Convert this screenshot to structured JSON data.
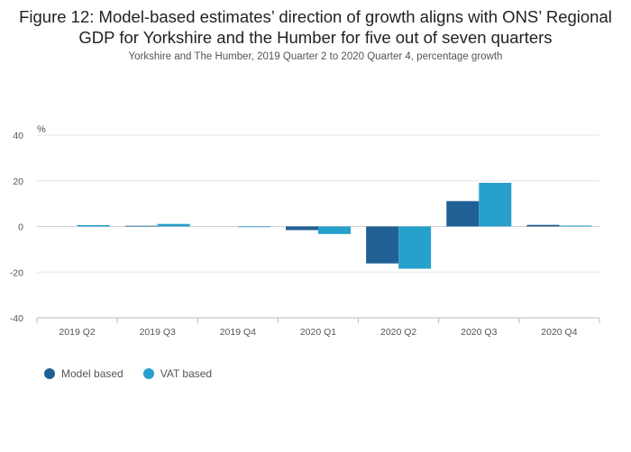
{
  "chart_data": {
    "type": "bar",
    "title": "Figure 12: Model-based estimates’ direction of growth aligns with ONS’ Regional GDP for Yorkshire and the Humber for five out of seven quarters",
    "subtitle": "Yorkshire and The Humber, 2019 Quarter 2 to 2020 Quarter 4, percentage growth",
    "ylabel": "%",
    "ylim": [
      -40,
      40
    ],
    "yticks": [
      40,
      20,
      0,
      -20,
      -40
    ],
    "categories": [
      "2019 Q2",
      "2019 Q3",
      "2019 Q4",
      "2020 Q1",
      "2020 Q2",
      "2020 Q3",
      "2020 Q4"
    ],
    "series": [
      {
        "name": "Model based",
        "color": "#206095",
        "values": [
          0,
          0.3,
          0,
          -1.6,
          -16.2,
          11.1,
          0.7
        ]
      },
      {
        "name": "VAT based",
        "color": "#27a0cc",
        "values": [
          0.6,
          1.1,
          -0.3,
          -3.3,
          -18.5,
          19.1,
          0.4
        ]
      }
    ],
    "grid": true,
    "legend_position": "bottom-left"
  }
}
